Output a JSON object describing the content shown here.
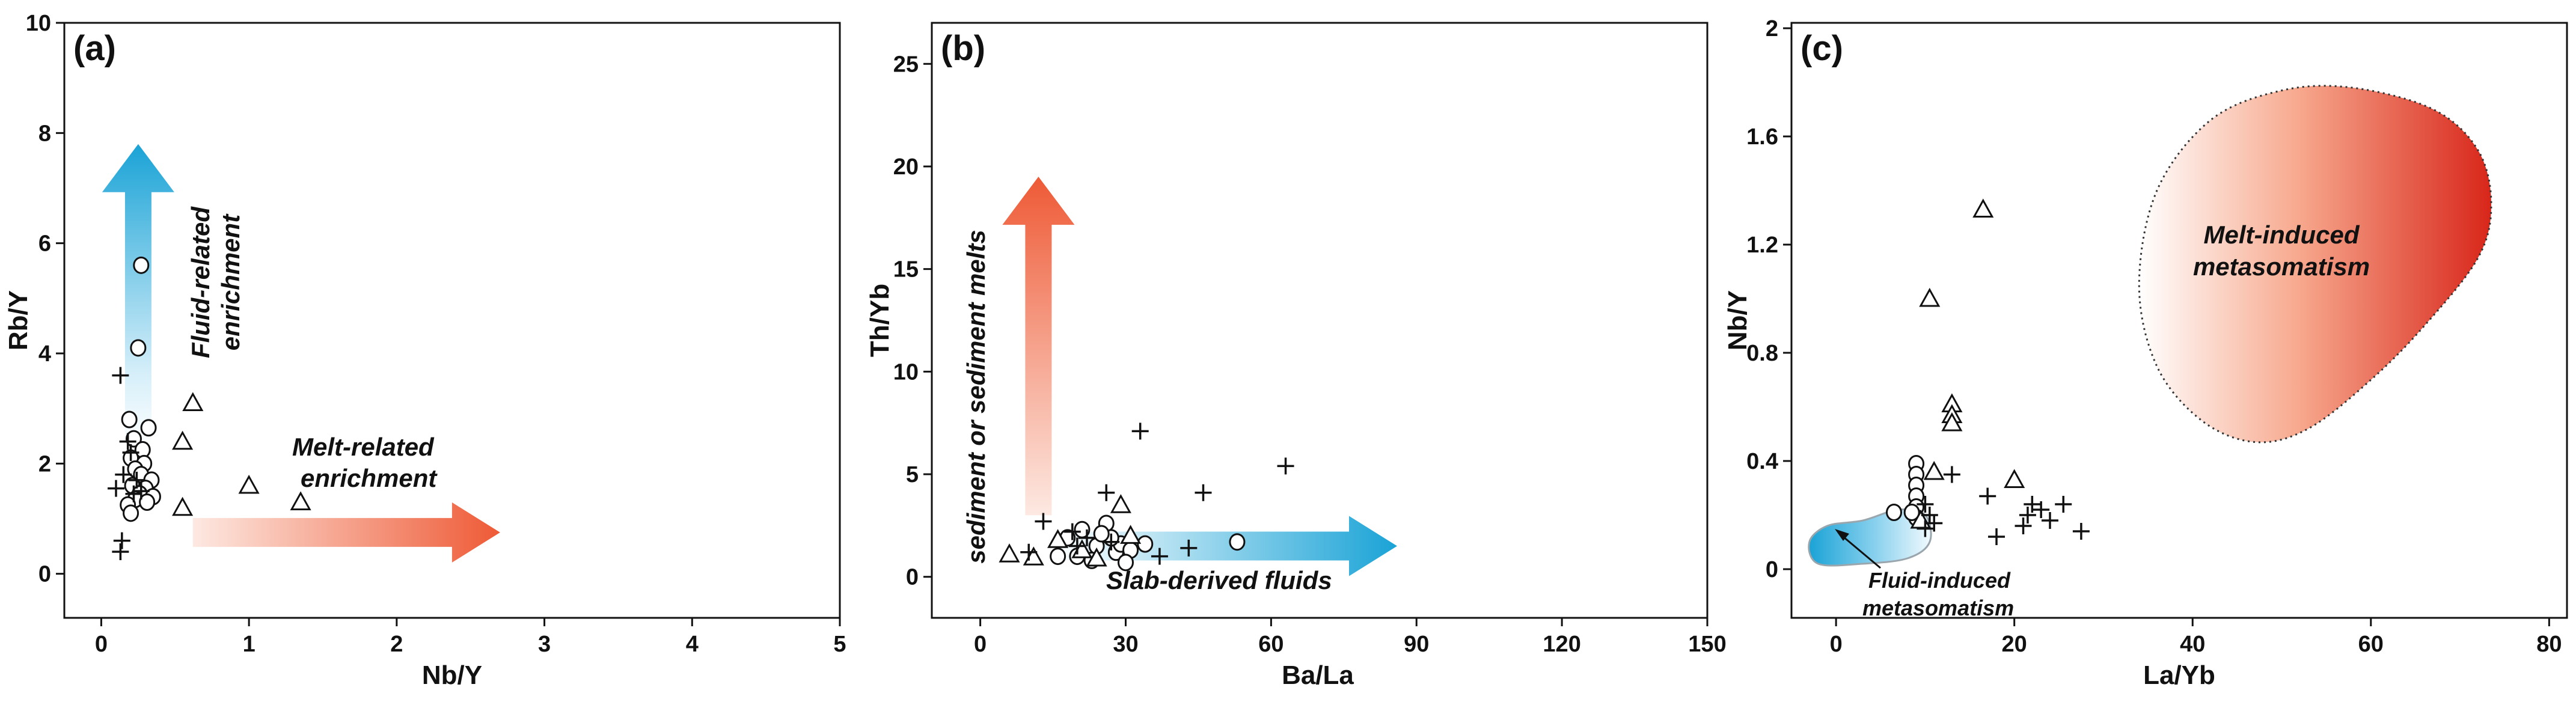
{
  "chart_data": [
    {
      "type": "scatter",
      "panel": "(a)",
      "xlabel": "Nb/Y",
      "ylabel": "Rb/Y",
      "xlim": [
        -0.25,
        5
      ],
      "ylim": [
        -0.8,
        10
      ],
      "xticks": [
        0,
        1,
        2,
        3,
        4,
        5
      ],
      "yticks": [
        0,
        2,
        4,
        6,
        8,
        10
      ],
      "annotations": [
        {
          "text": "Fluid-related",
          "role": "vertical-arrow-label"
        },
        {
          "text": "enrichment",
          "role": "vertical-arrow-label"
        },
        {
          "text": "Melt-related",
          "role": "horizontal-arrow-label"
        },
        {
          "text": "enrichment",
          "role": "horizontal-arrow-label"
        }
      ],
      "arrows": [
        {
          "direction": "up",
          "from": [
            0.25,
            2.3
          ],
          "to": [
            0.25,
            7.8
          ],
          "color": "#1aa3d6"
        },
        {
          "direction": "right",
          "from": [
            0.62,
            0.75
          ],
          "to": [
            2.7,
            0.75
          ],
          "color": "#ee5a36"
        }
      ],
      "series": [
        {
          "name": "circles",
          "marker": "circle",
          "points": [
            [
              0.27,
              5.6
            ],
            [
              0.25,
              4.1
            ],
            [
              0.19,
              2.8
            ],
            [
              0.32,
              2.65
            ],
            [
              0.22,
              2.45
            ],
            [
              0.28,
              2.25
            ],
            [
              0.2,
              2.1
            ],
            [
              0.29,
              2.0
            ],
            [
              0.23,
              1.9
            ],
            [
              0.27,
              1.8
            ],
            [
              0.34,
              1.7
            ],
            [
              0.21,
              1.6
            ],
            [
              0.3,
              1.55
            ],
            [
              0.26,
              1.45
            ],
            [
              0.35,
              1.4
            ],
            [
              0.23,
              1.35
            ],
            [
              0.31,
              1.3
            ],
            [
              0.18,
              1.25
            ],
            [
              0.2,
              1.1
            ]
          ]
        },
        {
          "name": "triangles",
          "marker": "triangle",
          "points": [
            [
              0.62,
              3.1
            ],
            [
              0.55,
              2.4
            ],
            [
              0.55,
              1.2
            ],
            [
              1.0,
              1.6
            ],
            [
              1.35,
              1.3
            ]
          ]
        },
        {
          "name": "crosses",
          "marker": "cross",
          "points": [
            [
              0.13,
              3.6
            ],
            [
              0.18,
              2.4
            ],
            [
              0.2,
              2.2
            ],
            [
              0.15,
              1.8
            ],
            [
              0.24,
              1.7
            ],
            [
              0.1,
              1.55
            ],
            [
              0.27,
              1.5
            ],
            [
              0.22,
              1.45
            ],
            [
              0.14,
              0.6
            ],
            [
              0.13,
              0.4
            ]
          ]
        }
      ]
    },
    {
      "type": "scatter",
      "panel": "(b)",
      "xlabel": "Ba/La",
      "ylabel": "Th/Yb",
      "xlim": [
        -10,
        150
      ],
      "ylim": [
        -2,
        27
      ],
      "xticks": [
        0,
        30,
        60,
        90,
        120,
        150
      ],
      "yticks": [
        0,
        5,
        10,
        15,
        20,
        25
      ],
      "annotations": [
        {
          "text": "sediment or sediment melts",
          "role": "vertical-arrow-label"
        },
        {
          "text": "Slab-derived fluids",
          "role": "horizontal-arrow-label"
        }
      ],
      "arrows": [
        {
          "direction": "up",
          "from": [
            12,
            3.0
          ],
          "to": [
            12,
            19.5
          ],
          "color": "#ee5a36"
        },
        {
          "direction": "right",
          "from": [
            15,
            1.5
          ],
          "to": [
            86,
            1.5
          ],
          "color": "#1aa3d6"
        }
      ],
      "series": [
        {
          "name": "circles",
          "marker": "circle",
          "points": [
            [
              18,
              1.9
            ],
            [
              21,
              2.3
            ],
            [
              24,
              1.5
            ],
            [
              26,
              2.6
            ],
            [
              28,
              1.2
            ],
            [
              29,
              1.6
            ],
            [
              20,
              1.0
            ],
            [
              23,
              0.8
            ],
            [
              27,
              1.9
            ],
            [
              31,
              1.3
            ],
            [
              34,
              1.6
            ],
            [
              25,
              2.1
            ],
            [
              16,
              1.0
            ],
            [
              30,
              0.7
            ],
            [
              53,
              1.7
            ]
          ]
        },
        {
          "name": "triangles",
          "marker": "triangle",
          "points": [
            [
              6,
              1.1
            ],
            [
              11,
              0.95
            ],
            [
              16,
              1.8
            ],
            [
              21,
              1.3
            ],
            [
              29,
              3.5
            ],
            [
              31,
              2.0
            ],
            [
              24,
              0.9
            ]
          ]
        },
        {
          "name": "crosses",
          "marker": "cross",
          "points": [
            [
              33,
              7.1
            ],
            [
              63,
              5.4
            ],
            [
              26,
              4.1
            ],
            [
              46,
              4.1
            ],
            [
              13,
              2.7
            ],
            [
              19,
              2.2
            ],
            [
              22,
              1.9
            ],
            [
              27,
              1.7
            ],
            [
              43,
              1.4
            ],
            [
              37,
              1.0
            ],
            [
              20,
              1.5
            ],
            [
              10,
              1.2
            ]
          ]
        }
      ]
    },
    {
      "type": "scatter",
      "panel": "(c)",
      "xlabel": "La/Yb",
      "ylabel": "Nb/Y",
      "xlim": [
        -5,
        82
      ],
      "ylim": [
        -0.18,
        2.02
      ],
      "xticks": [
        0,
        20,
        40,
        60,
        80
      ],
      "yticks": [
        0,
        0.4,
        0.8,
        1.2,
        1.6,
        2
      ],
      "ytick_labels": [
        "0",
        "0.4",
        "0.8",
        "1.2",
        "1.6",
        "2"
      ],
      "annotations": [
        {
          "text": "Melt-induced",
          "role": "region-label"
        },
        {
          "text": "metasomatism",
          "role": "region-label"
        },
        {
          "text": "Fluid-induced",
          "role": "region-label"
        },
        {
          "text": "metasomatism",
          "role": "region-label"
        }
      ],
      "regions": [
        {
          "name": "Melt-induced metasomatism",
          "color": "#e83a20",
          "outline": [
            [
              47,
              0.47
            ],
            [
              41,
              0.55
            ],
            [
              36,
              0.75
            ],
            [
              34,
              1.05
            ],
            [
              36,
              1.4
            ],
            [
              42,
              1.66
            ],
            [
              50,
              1.77
            ],
            [
              58,
              1.78
            ],
            [
              67,
              1.7
            ],
            [
              72,
              1.55
            ],
            [
              73.5,
              1.35
            ],
            [
              72,
              1.15
            ],
            [
              66,
              0.9
            ],
            [
              60,
              0.7
            ],
            [
              53,
              0.52
            ]
          ]
        },
        {
          "name": "Fluid-induced metasomatism",
          "color": "#1aa3d6",
          "outline": [
            [
              -2,
              0.02
            ],
            [
              -3,
              0.1
            ],
            [
              -1,
              0.16
            ],
            [
              3,
              0.18
            ],
            [
              7,
              0.22
            ],
            [
              10,
              0.2
            ],
            [
              10.5,
              0.1
            ],
            [
              8,
              0.04
            ],
            [
              3,
              0.02
            ]
          ]
        }
      ],
      "series": [
        {
          "name": "circles",
          "marker": "circle",
          "points": [
            [
              9,
              0.39
            ],
            [
              9,
              0.35
            ],
            [
              9,
              0.31
            ],
            [
              9,
              0.27
            ],
            [
              9,
              0.23
            ],
            [
              9,
              0.19
            ],
            [
              8.5,
              0.21
            ],
            [
              6.5,
              0.21
            ]
          ]
        },
        {
          "name": "triangles",
          "marker": "triangle",
          "points": [
            [
              16.5,
              1.33
            ],
            [
              10.5,
              1.0
            ],
            [
              13,
              0.61
            ],
            [
              13,
              0.57
            ],
            [
              13,
              0.54
            ],
            [
              11,
              0.36
            ],
            [
              20,
              0.33
            ],
            [
              9.5,
              0.18
            ]
          ]
        },
        {
          "name": "crosses",
          "marker": "cross",
          "points": [
            [
              10,
              0.24
            ],
            [
              10.5,
              0.2
            ],
            [
              11,
              0.17
            ],
            [
              10,
              0.15
            ],
            [
              13,
              0.35
            ],
            [
              17,
              0.27
            ],
            [
              21,
              0.16
            ],
            [
              22,
              0.24
            ],
            [
              23,
              0.22
            ],
            [
              24,
              0.18
            ],
            [
              25.5,
              0.24
            ],
            [
              27.5,
              0.14
            ],
            [
              18,
              0.12
            ],
            [
              21.5,
              0.2
            ]
          ]
        }
      ]
    }
  ]
}
